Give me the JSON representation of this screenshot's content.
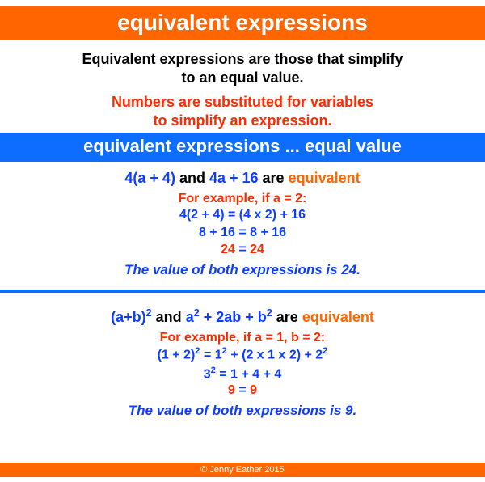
{
  "colors": {
    "orange": "#ff6500",
    "blue_bar": "#0c6dff",
    "text_blue": "#0c3cff",
    "text_red": "#ff2a00",
    "text_black": "#000000",
    "white": "#ffffff"
  },
  "title": "equivalent expressions",
  "intro": {
    "line1": "Equivalent expressions are those that simplify",
    "line2": "to an equal value.",
    "red1": "Numbers are substituted for variables",
    "red2": "to simplify an expression."
  },
  "subtitle": "equivalent expressions ... equal value",
  "ex1": {
    "lhs": "4(a + 4)",
    "and": " and ",
    "rhs": "4a + 16",
    "are": " are ",
    "equiv": "equivalent",
    "for": "For example, if a = 2:",
    "step1": "4(2 + 4) = (4 x 2) + 16",
    "step2": "8 + 16 = 8 + 16",
    "res_l": "24",
    "res_eq": " = ",
    "res_r": "24",
    "conclusion": "The value of both expressions is 24."
  },
  "ex2": {
    "lhs_base": "(a+b)",
    "and": " and ",
    "rhs_a": "a",
    "rhs_mid1": " + 2ab + b",
    "are": " are ",
    "equiv": "equivalent",
    "for": "For example, if a = 1, b = 2:",
    "s1_l": "(1 + 2)",
    "s1_eq": " = 1",
    "s1_m": " + (2 x 1 x 2) + 2",
    "s2_l": "3",
    "s2_r": " = 1 + 4 + 4",
    "res_l": "9",
    "res_eq": " = ",
    "res_r": "9",
    "conclusion": "The value of both expressions is 9."
  },
  "footer": "© Jenny Eather 2015"
}
